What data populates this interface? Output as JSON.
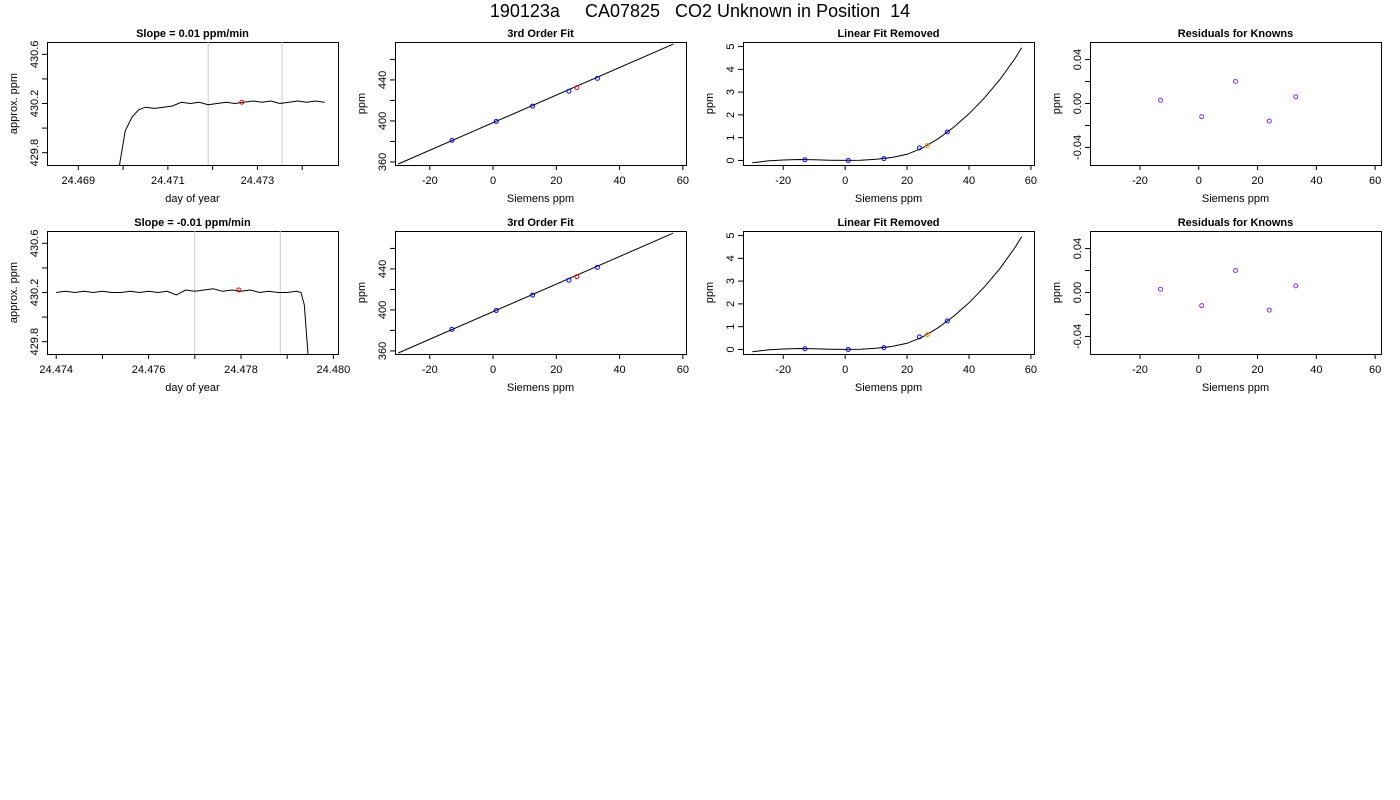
{
  "page": {
    "title": "190123a     CA07825   CO2 Unknown in Position  14"
  },
  "colors": {
    "line": "#000000",
    "marker_line": "#c8c8c8",
    "known": "#0000ff",
    "unknown": "#ff0000",
    "unknown_linear": "#ff8c00",
    "residual": "#8a2be2"
  },
  "chart_data": [
    {
      "id": "r1c1",
      "type": "line",
      "title": "Slope =  0.01  ppm/min",
      "xlabel": "day of year",
      "ylabel": "approx. ppm",
      "xlim": [
        24.4683,
        24.4748
      ],
      "ylim": [
        429.7,
        430.7
      ],
      "xticks": [
        24.469,
        24.47,
        24.471,
        24.472,
        24.473,
        24.474
      ],
      "xtick_labels": [
        "24.469",
        "",
        "24.471",
        "",
        "24.473",
        ""
      ],
      "yticks": [
        429.8,
        430.0,
        430.2,
        430.4,
        430.6
      ],
      "ytick_labels": [
        "429.8",
        "",
        "430.2",
        "",
        "430.6"
      ],
      "vlines": [
        24.4719,
        24.47355
      ],
      "x": [
        24.46992,
        24.47005,
        24.4702,
        24.47035,
        24.4705,
        24.4707,
        24.4709,
        24.4711,
        24.4713,
        24.4715,
        24.4717,
        24.4719,
        24.4721,
        24.4723,
        24.4725,
        24.4727,
        24.4729,
        24.4731,
        24.4733,
        24.4735,
        24.4737,
        24.4739,
        24.4741,
        24.4743,
        24.4745
      ],
      "y": [
        429.7,
        429.98,
        430.09,
        430.15,
        430.17,
        430.16,
        430.17,
        430.18,
        430.21,
        430.2,
        430.21,
        430.19,
        430.2,
        430.21,
        430.2,
        430.21,
        430.22,
        430.21,
        430.22,
        430.2,
        430.21,
        430.22,
        430.21,
        430.22,
        430.21
      ],
      "marker": {
        "x": 24.47265,
        "y": 430.21
      }
    },
    {
      "id": "r1c2",
      "type": "line",
      "title": "3rd Order Fit",
      "xlabel": "Siemens ppm",
      "ylabel": "ppm",
      "xlim": [
        -31,
        61
      ],
      "ylim": [
        357,
        477
      ],
      "xticks": [
        -20,
        0,
        20,
        40,
        60
      ],
      "xtick_labels": [
        "-20",
        "0",
        "20",
        "40",
        "60"
      ],
      "yticks": [
        360,
        380,
        400,
        420,
        440,
        460
      ],
      "ytick_labels": [
        "360",
        "",
        "400",
        "",
        "440",
        ""
      ],
      "curve_x": [
        -30,
        57
      ],
      "curve_y": [
        358,
        475
      ],
      "known": {
        "x": [
          -13,
          1,
          12.5,
          24,
          33
        ],
        "y": [
          381,
          399.5,
          414.5,
          429,
          441.5
        ]
      },
      "unknown": {
        "x": [
          26.5
        ],
        "y": [
          432.5
        ]
      }
    },
    {
      "id": "r1c3",
      "type": "line",
      "title": "Linear Fit Removed",
      "xlabel": "Siemens ppm",
      "ylabel": "ppm",
      "xlim": [
        -33,
        61
      ],
      "ylim": [
        -0.2,
        5.2
      ],
      "xticks": [
        -20,
        0,
        20,
        40,
        60
      ],
      "xtick_labels": [
        "-20",
        "0",
        "20",
        "40",
        "60"
      ],
      "yticks": [
        0,
        1,
        2,
        3,
        4,
        5
      ],
      "ytick_labels": [
        "0",
        "1",
        "2",
        "3",
        "4",
        "5"
      ],
      "curve_x": [
        -30,
        -25,
        -20,
        -15,
        -10,
        -5,
        0,
        5,
        10,
        15,
        20,
        25,
        30,
        35,
        40,
        45,
        50,
        55,
        57
      ],
      "curve_y": [
        -0.1,
        -0.02,
        0.02,
        0.04,
        0.03,
        0.01,
        0.0,
        0.01,
        0.05,
        0.13,
        0.27,
        0.55,
        0.95,
        1.45,
        2.05,
        2.75,
        3.55,
        4.5,
        4.95
      ],
      "known": {
        "x": [
          -13,
          1,
          12.5,
          24,
          33
        ],
        "y": [
          0.03,
          0.0,
          0.08,
          0.55,
          1.25
        ]
      },
      "unknown": {
        "x": [
          26.5
        ],
        "y": [
          0.65
        ]
      }
    },
    {
      "id": "r1c4",
      "type": "scatter",
      "title": "Residuals for Knowns",
      "xlabel": "Siemens ppm",
      "ylabel": "ppm",
      "xlim": [
        -37,
        62
      ],
      "ylim": [
        -0.056,
        0.056
      ],
      "xticks": [
        -20,
        0,
        20,
        40,
        60
      ],
      "xtick_labels": [
        "-20",
        "0",
        "20",
        "40",
        "60"
      ],
      "yticks": [
        -0.04,
        -0.02,
        0.0,
        0.02,
        0.04
      ],
      "ytick_labels": [
        "-0.04",
        "",
        "0.00",
        "",
        "0.04"
      ],
      "points": {
        "x": [
          -13,
          1,
          12.5,
          24,
          33
        ],
        "y": [
          0.003,
          -0.012,
          0.02,
          -0.016,
          0.006
        ]
      }
    },
    {
      "id": "r2c1",
      "type": "line",
      "title": "Slope =  -0.01  ppm/min",
      "xlabel": "day of year",
      "ylabel": "approx. ppm",
      "xlim": [
        24.4738,
        24.4801
      ],
      "ylim": [
        429.7,
        430.7
      ],
      "xticks": [
        24.474,
        24.475,
        24.476,
        24.477,
        24.478,
        24.479,
        24.48
      ],
      "xtick_labels": [
        "24.474",
        "",
        "24.476",
        "",
        "24.478",
        "",
        "24.480"
      ],
      "yticks": [
        429.8,
        430.0,
        430.2,
        430.4,
        430.6
      ],
      "ytick_labels": [
        "429.8",
        "",
        "430.2",
        "",
        "430.6"
      ],
      "vlines": [
        24.477,
        24.47885
      ],
      "x": [
        24.474,
        24.4742,
        24.4744,
        24.4746,
        24.4748,
        24.475,
        24.4752,
        24.4754,
        24.4756,
        24.4758,
        24.476,
        24.4762,
        24.4764,
        24.4766,
        24.4768,
        24.477,
        24.4772,
        24.4774,
        24.4776,
        24.4778,
        24.478,
        24.4782,
        24.4784,
        24.4786,
        24.4788,
        24.479,
        24.4792,
        24.4793,
        24.47937,
        24.47945
      ],
      "y": [
        430.2,
        430.21,
        430.2,
        430.21,
        430.2,
        430.21,
        430.2,
        430.2,
        430.21,
        430.2,
        430.21,
        430.2,
        430.21,
        430.18,
        430.22,
        430.21,
        430.22,
        430.23,
        430.21,
        430.22,
        430.21,
        430.22,
        430.2,
        430.21,
        430.2,
        430.2,
        430.21,
        430.2,
        430.1,
        429.7
      ],
      "marker": {
        "x": 24.47795,
        "y": 430.22
      }
    },
    {
      "id": "r2c2",
      "type": "line",
      "title": "3rd Order Fit",
      "xlabel": "Siemens ppm",
      "ylabel": "ppm",
      "xlim": [
        -31,
        61
      ],
      "ylim": [
        357,
        477
      ],
      "xticks": [
        -20,
        0,
        20,
        40,
        60
      ],
      "xtick_labels": [
        "-20",
        "0",
        "20",
        "40",
        "60"
      ],
      "yticks": [
        360,
        380,
        400,
        420,
        440,
        460
      ],
      "ytick_labels": [
        "360",
        "",
        "400",
        "",
        "440",
        ""
      ],
      "curve_x": [
        -30,
        57
      ],
      "curve_y": [
        358,
        475
      ],
      "known": {
        "x": [
          -13,
          1,
          12.5,
          24,
          33
        ],
        "y": [
          381,
          399.5,
          414.5,
          429,
          441.5
        ]
      },
      "unknown": {
        "x": [
          26.5
        ],
        "y": [
          432.5
        ]
      }
    },
    {
      "id": "r2c3",
      "type": "line",
      "title": "Linear Fit Removed",
      "xlabel": "Siemens ppm",
      "ylabel": "ppm",
      "xlim": [
        -33,
        61
      ],
      "ylim": [
        -0.2,
        5.2
      ],
      "xticks": [
        -20,
        0,
        20,
        40,
        60
      ],
      "xtick_labels": [
        "-20",
        "0",
        "20",
        "40",
        "60"
      ],
      "yticks": [
        0,
        1,
        2,
        3,
        4,
        5
      ],
      "ytick_labels": [
        "0",
        "1",
        "2",
        "3",
        "4",
        "5"
      ],
      "curve_x": [
        -30,
        -25,
        -20,
        -15,
        -10,
        -5,
        0,
        5,
        10,
        15,
        20,
        25,
        30,
        35,
        40,
        45,
        50,
        55,
        57
      ],
      "curve_y": [
        -0.1,
        -0.02,
        0.02,
        0.04,
        0.03,
        0.01,
        0.0,
        0.01,
        0.05,
        0.13,
        0.27,
        0.55,
        0.95,
        1.45,
        2.05,
        2.75,
        3.55,
        4.5,
        4.95
      ],
      "known": {
        "x": [
          -13,
          1,
          12.5,
          24,
          33
        ],
        "y": [
          0.03,
          0.0,
          0.08,
          0.55,
          1.25
        ]
      },
      "unknown": {
        "x": [
          26.5
        ],
        "y": [
          0.65
        ]
      }
    },
    {
      "id": "r2c4",
      "type": "scatter",
      "title": "Residuals for Knowns",
      "xlabel": "Siemens ppm",
      "ylabel": "ppm",
      "xlim": [
        -37,
        62
      ],
      "ylim": [
        -0.056,
        0.056
      ],
      "xticks": [
        -20,
        0,
        20,
        40,
        60
      ],
      "xtick_labels": [
        "-20",
        "0",
        "20",
        "40",
        "60"
      ],
      "yticks": [
        -0.04,
        -0.02,
        0.0,
        0.02,
        0.04
      ],
      "ytick_labels": [
        "-0.04",
        "",
        "0.00",
        "",
        "0.04"
      ],
      "points": {
        "x": [
          -13,
          1,
          12.5,
          24,
          33
        ],
        "y": [
          0.003,
          -0.012,
          0.02,
          -0.016,
          0.006
        ]
      }
    }
  ]
}
